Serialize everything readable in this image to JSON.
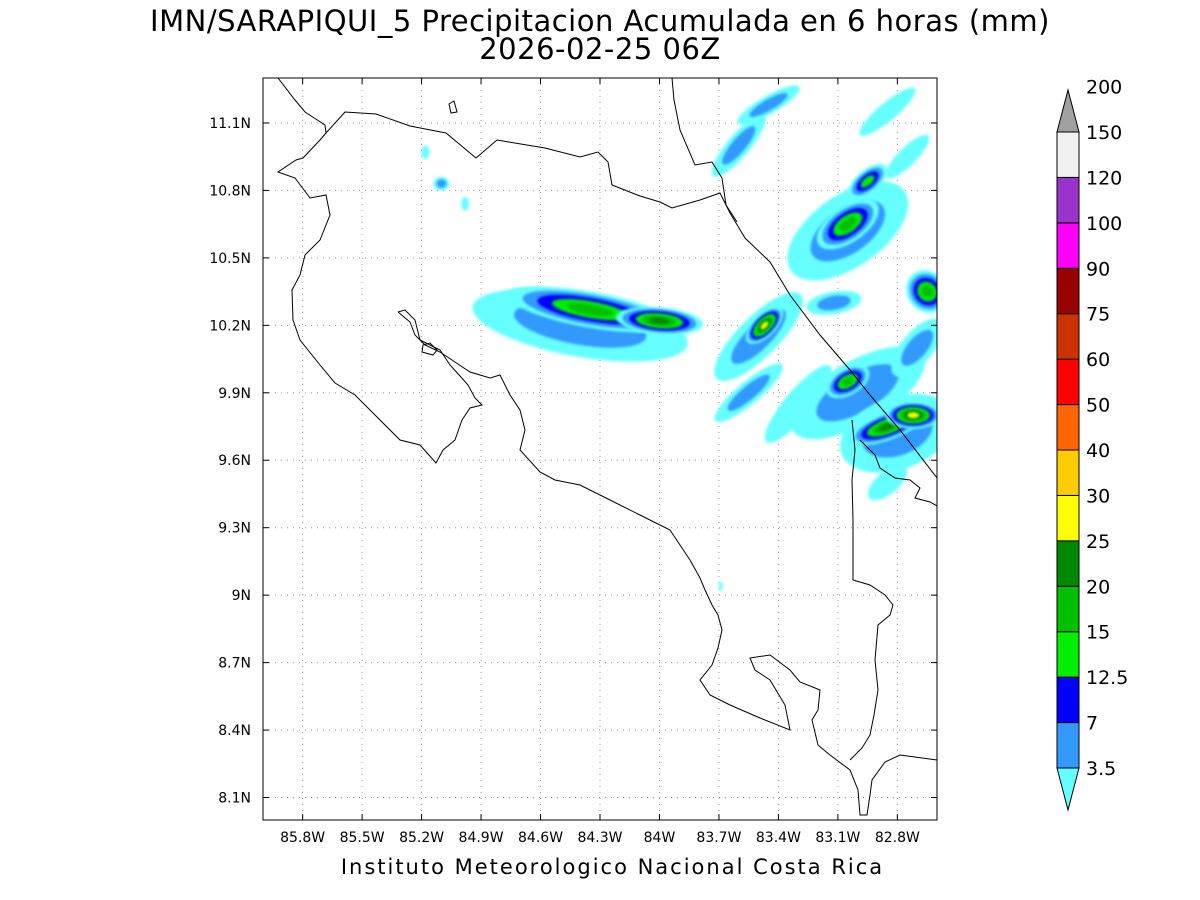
{
  "title_line1": "IMN/SARAPIQUI_5 Precipitacion Acumulada en 6 horas (mm)",
  "title_line2": "2026-02-25 06Z",
  "footer": "Instituto Meteorologico Nacional Costa Rica",
  "map": {
    "lon_range": [
      -86.0,
      -82.6
    ],
    "lat_range": [
      8.0,
      11.3
    ],
    "lon_ticks": [
      {
        "value": -85.8,
        "label": "85.8W"
      },
      {
        "value": -85.5,
        "label": "85.5W"
      },
      {
        "value": -85.2,
        "label": "85.2W"
      },
      {
        "value": -84.9,
        "label": "84.9W"
      },
      {
        "value": -84.6,
        "label": "84.6W"
      },
      {
        "value": -84.3,
        "label": "84.3W"
      },
      {
        "value": -84.0,
        "label": "84W"
      },
      {
        "value": -83.7,
        "label": "83.7W"
      },
      {
        "value": -83.4,
        "label": "83.4W"
      },
      {
        "value": -83.1,
        "label": "83.1W"
      },
      {
        "value": -82.8,
        "label": "82.8W"
      }
    ],
    "lat_ticks": [
      {
        "value": 8.1,
        "label": "8.1N"
      },
      {
        "value": 8.4,
        "label": "8.4N"
      },
      {
        "value": 8.7,
        "label": "8.7N"
      },
      {
        "value": 9.0,
        "label": "9N"
      },
      {
        "value": 9.3,
        "label": "9.3N"
      },
      {
        "value": 9.6,
        "label": "9.6N"
      },
      {
        "value": 9.9,
        "label": "9.9N"
      },
      {
        "value": 10.2,
        "label": "10.2N"
      },
      {
        "value": 10.5,
        "label": "10.5N"
      },
      {
        "value": 10.8,
        "label": "10.8N"
      },
      {
        "value": 11.1,
        "label": "11.1N"
      }
    ],
    "grid": "dotted"
  },
  "colorbar": {
    "levels": [
      "3.5",
      "7",
      "12.5",
      "15",
      "20",
      "25",
      "30",
      "40",
      "50",
      "60",
      "75",
      "90",
      "100",
      "120",
      "150",
      "200"
    ],
    "colors": [
      "#66ffff",
      "#3399ff",
      "#0000ff",
      "#00ee00",
      "#00c000",
      "#008800",
      "#ffff00",
      "#ffcc00",
      "#ff6600",
      "#ff0000",
      "#cc3300",
      "#990000",
      "#ff00ff",
      "#9933cc",
      "#f0f0f0",
      "#a0a0a0"
    ],
    "arrows": "both"
  },
  "precip_areas": [
    {
      "lon": -84.35,
      "lat": 10.27,
      "rx_deg": 0.42,
      "ry_deg": 0.08,
      "rot": 10,
      "level": 20
    },
    {
      "lon": -84.0,
      "lat": 10.22,
      "rx_deg": 0.22,
      "ry_deg": 0.06,
      "rot": 5,
      "level": 25
    },
    {
      "lon": -84.4,
      "lat": 10.2,
      "rx_deg": 0.55,
      "ry_deg": 0.14,
      "rot": 10,
      "level": 7
    },
    {
      "lon": -84.65,
      "lat": 10.3,
      "rx_deg": 0.18,
      "ry_deg": 0.07,
      "rot": 0,
      "level": 3.5
    },
    {
      "lon": -83.47,
      "lat": 10.2,
      "rx_deg": 0.12,
      "ry_deg": 0.05,
      "rot": -45,
      "level": 30
    },
    {
      "lon": -83.5,
      "lat": 10.15,
      "rx_deg": 0.3,
      "ry_deg": 0.09,
      "rot": -45,
      "level": 7
    },
    {
      "lon": -83.05,
      "lat": 10.65,
      "rx_deg": 0.18,
      "ry_deg": 0.08,
      "rot": -35,
      "level": 20
    },
    {
      "lon": -83.05,
      "lat": 10.62,
      "rx_deg": 0.35,
      "ry_deg": 0.16,
      "rot": -35,
      "level": 7
    },
    {
      "lon": -82.95,
      "lat": 10.84,
      "rx_deg": 0.12,
      "ry_deg": 0.05,
      "rot": -40,
      "level": 15
    },
    {
      "lon": -83.05,
      "lat": 9.95,
      "rx_deg": 0.12,
      "ry_deg": 0.06,
      "rot": -30,
      "level": 20
    },
    {
      "lon": -83.0,
      "lat": 9.9,
      "rx_deg": 0.38,
      "ry_deg": 0.14,
      "rot": -30,
      "level": 7
    },
    {
      "lon": -82.85,
      "lat": 9.75,
      "rx_deg": 0.2,
      "ry_deg": 0.06,
      "rot": -20,
      "level": 25
    },
    {
      "lon": -82.72,
      "lat": 9.8,
      "rx_deg": 0.14,
      "ry_deg": 0.06,
      "rot": 0,
      "level": 30
    },
    {
      "lon": -82.8,
      "lat": 9.72,
      "rx_deg": 0.3,
      "ry_deg": 0.16,
      "rot": -20,
      "level": 7
    },
    {
      "lon": -82.65,
      "lat": 10.35,
      "rx_deg": 0.1,
      "ry_deg": 0.1,
      "rot": -40,
      "level": 20
    },
    {
      "lon": -82.7,
      "lat": 10.1,
      "rx_deg": 0.18,
      "ry_deg": 0.07,
      "rot": -50,
      "level": 7
    },
    {
      "lon": -83.3,
      "lat": 9.85,
      "rx_deg": 0.25,
      "ry_deg": 0.06,
      "rot": -50,
      "level": 3.5
    },
    {
      "lon": -83.55,
      "lat": 9.9,
      "rx_deg": 0.22,
      "ry_deg": 0.05,
      "rot": -40,
      "level": 7
    },
    {
      "lon": -83.6,
      "lat": 11.0,
      "rx_deg": 0.2,
      "ry_deg": 0.05,
      "rot": -50,
      "level": 7
    },
    {
      "lon": -83.45,
      "lat": 11.18,
      "rx_deg": 0.18,
      "ry_deg": 0.04,
      "rot": -30,
      "level": 7
    },
    {
      "lon": -82.85,
      "lat": 11.15,
      "rx_deg": 0.18,
      "ry_deg": 0.04,
      "rot": -40,
      "level": 3.5
    },
    {
      "lon": -82.75,
      "lat": 10.95,
      "rx_deg": 0.15,
      "ry_deg": 0.04,
      "rot": -45,
      "level": 3.5
    },
    {
      "lon": -83.12,
      "lat": 10.3,
      "rx_deg": 0.14,
      "ry_deg": 0.05,
      "rot": -10,
      "level": 7
    },
    {
      "lon": -82.85,
      "lat": 9.5,
      "rx_deg": 0.12,
      "ry_deg": 0.05,
      "rot": -40,
      "level": 3.5
    },
    {
      "lon": -85.1,
      "lat": 10.83,
      "rx_deg": 0.04,
      "ry_deg": 0.03,
      "rot": 0,
      "level": 7
    },
    {
      "lon": -85.18,
      "lat": 10.97,
      "rx_deg": 0.02,
      "ry_deg": 0.03,
      "rot": 0,
      "level": 3.5
    },
    {
      "lon": -84.98,
      "lat": 10.74,
      "rx_deg": 0.02,
      "ry_deg": 0.03,
      "rot": 0,
      "level": 3.5
    },
    {
      "lon": -83.69,
      "lat": 9.04,
      "rx_deg": 0.01,
      "ry_deg": 0.02,
      "rot": 0,
      "level": 3.5
    }
  ]
}
